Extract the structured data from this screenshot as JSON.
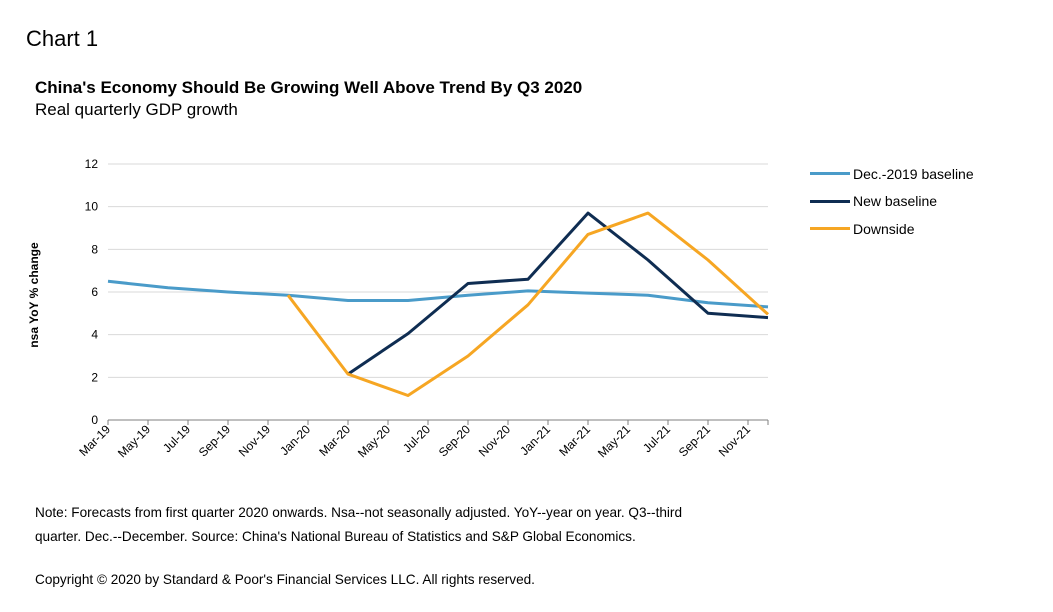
{
  "header": {
    "chart_label": "Chart 1",
    "title": "China's Economy Should Be Growing Well Above Trend By Q3 2020",
    "subtitle": "Real quarterly GDP growth"
  },
  "footer": {
    "note": "Note: Forecasts from first quarter 2020 onwards. Nsa--not seasonally adjusted. YoY--year on year. Q3--third quarter. Dec.--December. Source: China's National Bureau of Statistics and S&P Global Economics.",
    "copyright": "Copyright © 2020 by Standard & Poor's Financial Services LLC. All rights reserved."
  },
  "chart_data": {
    "type": "line",
    "title": "China's Economy Should Be Growing Well Above Trend By Q3 2020",
    "subtitle": "Real quarterly GDP growth",
    "xlabel": "",
    "ylabel": "nsa YoY % change",
    "ylim": [
      0,
      12
    ],
    "yticks": [
      0,
      2,
      4,
      6,
      8,
      10,
      12
    ],
    "xlim": [
      "2019-03",
      "2021-12"
    ],
    "xticks": [
      "Mar-19",
      "May-19",
      "Jul-19",
      "Sep-19",
      "Nov-19",
      "Jan-20",
      "Mar-20",
      "May-20",
      "Jul-20",
      "Sep-20",
      "Nov-20",
      "Jan-21",
      "Mar-21",
      "May-21",
      "Jul-21",
      "Sep-21",
      "Nov-21"
    ],
    "grid": true,
    "legend_position": "right",
    "series": [
      {
        "name": "Dec.-2019 baseline",
        "color": "#4a9bc9",
        "points": [
          [
            "2019-03",
            6.5
          ],
          [
            "2019-06",
            6.2
          ],
          [
            "2019-09",
            6.0
          ],
          [
            "2019-12",
            5.85
          ],
          [
            "2020-03",
            5.6
          ],
          [
            "2020-06",
            5.6
          ],
          [
            "2020-09",
            5.85
          ],
          [
            "2020-12",
            6.05
          ],
          [
            "2021-03",
            5.95
          ],
          [
            "2021-06",
            5.85
          ],
          [
            "2021-09",
            5.5
          ],
          [
            "2021-12",
            5.3
          ]
        ]
      },
      {
        "name": "New baseline",
        "color": "#0f2d52",
        "points": [
          [
            "2020-03",
            2.15
          ],
          [
            "2020-06",
            4.05
          ],
          [
            "2020-09",
            6.4
          ],
          [
            "2020-12",
            6.6
          ],
          [
            "2021-03",
            9.7
          ],
          [
            "2021-06",
            7.5
          ],
          [
            "2021-09",
            5.0
          ],
          [
            "2021-12",
            4.8
          ]
        ]
      },
      {
        "name": "Downside",
        "color": "#f6a623",
        "points": [
          [
            "2019-12",
            5.85
          ],
          [
            "2020-03",
            2.15
          ],
          [
            "2020-06",
            1.15
          ],
          [
            "2020-09",
            3.0
          ],
          [
            "2020-12",
            5.4
          ],
          [
            "2021-03",
            8.7
          ],
          [
            "2021-06",
            9.7
          ],
          [
            "2021-09",
            7.5
          ],
          [
            "2021-12",
            4.95
          ]
        ]
      }
    ]
  }
}
